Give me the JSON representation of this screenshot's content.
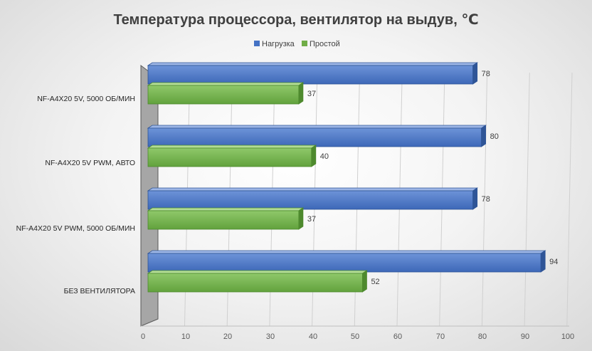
{
  "chart_data": {
    "type": "bar",
    "orientation": "horizontal",
    "title": "Температура процессора, вентилятор на выдув, ℃",
    "categories": [
      "NF-A4X20 5V, 5000 ОБ/МИН",
      "NF-A4X20 5V PWM, АВТО",
      "NF-A4X20 5V PWM, 5000 ОБ/МИН",
      "БЕЗ ВЕНТИЛЯТОРА"
    ],
    "series": [
      {
        "name": "Нагрузка",
        "values": [
          78,
          80,
          78,
          94
        ],
        "color": "#4472C4"
      },
      {
        "name": "Простой",
        "values": [
          37,
          40,
          37,
          52
        ],
        "color": "#70AD47"
      }
    ],
    "x_ticks": [
      "0",
      "10",
      "20",
      "30",
      "40",
      "50",
      "60",
      "70",
      "80",
      "90",
      "100"
    ],
    "xlim": [
      0,
      100
    ],
    "grid": true,
    "legend": "top",
    "style": "3d"
  }
}
